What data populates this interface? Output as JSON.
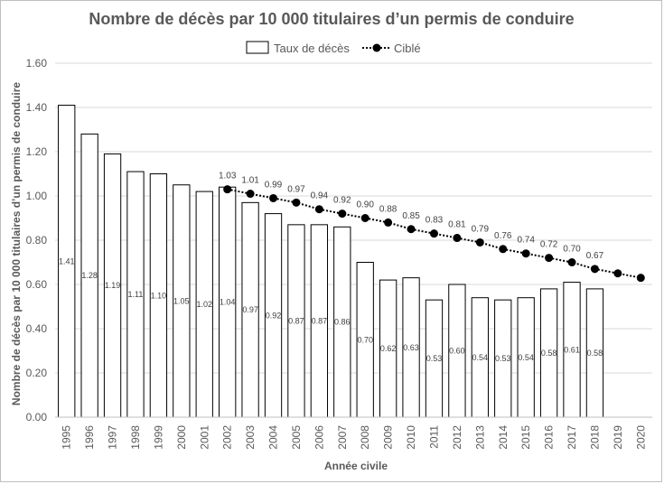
{
  "chart_data": {
    "type": "bar",
    "title": "Nombre de décès par 10 000 titulaires d’un permis de conduire",
    "xlabel": "Année civile",
    "ylabel": "Nombre de décès par 10 000 titulaires d’un permis de conduire",
    "ylim": [
      0,
      1.6
    ],
    "yticks": [
      "0.00",
      "0.20",
      "0.40",
      "0.60",
      "0.80",
      "1.00",
      "1.20",
      "1.40",
      "1.60"
    ],
    "grid": true,
    "legend_position": "top",
    "categories": [
      "1995",
      "1996",
      "1997",
      "1998",
      "1999",
      "2000",
      "2001",
      "2002",
      "2003",
      "2004",
      "2005",
      "2006",
      "2007",
      "2008",
      "2009",
      "2010",
      "2011",
      "2012",
      "2013",
      "2014",
      "2015",
      "2016",
      "2017",
      "2018",
      "2019",
      "2020"
    ],
    "series": [
      {
        "name": "Taux de décès",
        "kind": "bar",
        "color": "#ffffff",
        "stroke": "#000000",
        "values": [
          1.41,
          1.28,
          1.19,
          1.11,
          1.1,
          1.05,
          1.02,
          1.04,
          0.97,
          0.92,
          0.87,
          0.87,
          0.86,
          0.7,
          0.62,
          0.63,
          0.53,
          0.6,
          0.54,
          0.53,
          0.54,
          0.58,
          0.61,
          0.58,
          null,
          null
        ],
        "labels": [
          "1.41",
          "1.28",
          "1.19",
          "1.11",
          "1.10",
          "1.05",
          "1.02",
          "1.04",
          "0.97",
          "0.92",
          "0.87",
          "0.87",
          "0.86",
          "0.70",
          "0.62",
          "0.63",
          "0.53",
          "0.60",
          "0.54",
          "0.53",
          "0.54",
          "0.58",
          "0.61",
          "0.58",
          "",
          ""
        ]
      },
      {
        "name": "Ciblé",
        "kind": "line",
        "color": "#000000",
        "values": [
          null,
          null,
          null,
          null,
          null,
          null,
          null,
          1.03,
          1.01,
          0.99,
          0.97,
          0.94,
          0.92,
          0.9,
          0.88,
          0.85,
          0.83,
          0.81,
          0.79,
          0.76,
          0.74,
          0.72,
          0.7,
          0.67,
          0.65,
          0.63
        ],
        "labels": [
          "",
          "",
          "",
          "",
          "",
          "",
          "",
          "1.03",
          "1.01",
          "0.99",
          "0.97",
          "0.94",
          "0.92",
          "0.90",
          "0.88",
          "0.85",
          "0.83",
          "0.81",
          "0.79",
          "0.76",
          "0.74",
          "0.72",
          "0.70",
          "0.67",
          "",
          ""
        ]
      }
    ]
  }
}
